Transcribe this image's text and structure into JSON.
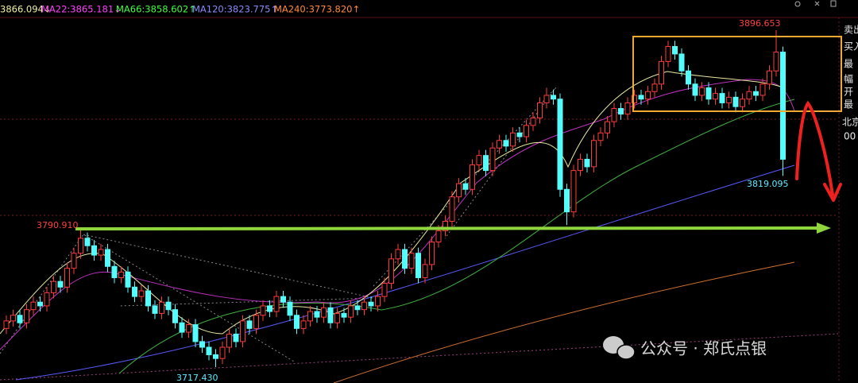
{
  "chart_data": {
    "type": "candlestick",
    "header": [
      "3866.094↓",
      "MA22:3865.181↓",
      "MA66:3858.602↑",
      "MA120:3823.775↑",
      "MA240:3773.820↑"
    ],
    "header_colors": [
      "#f0f0a0",
      "#ff40ff",
      "#40ff40",
      "#8a8aff",
      "#ff8a40"
    ],
    "annotations": [
      {
        "text": "3790.910",
        "color": "#ff4040"
      },
      {
        "text": "3896.653",
        "color": "#ff4040"
      },
      {
        "text": "3819.095",
        "color": "#60e8ff"
      },
      {
        "text": "3717.430",
        "color": "#60e8ff"
      }
    ],
    "side_panel": [
      "卖出",
      "买入",
      "最",
      "幅",
      "开",
      "最",
      "北京",
      "00"
    ],
    "watermark": "公众号 · 郑氏点银",
    "up_color": "#ff3a3a",
    "down_color": "#54fcfc",
    "open": [
      3738,
      3742,
      3745,
      3741,
      3748,
      3752,
      3750,
      3757,
      3763,
      3760,
      3770,
      3778,
      3786,
      3782,
      3777,
      3780,
      3771,
      3765,
      3768,
      3760,
      3755,
      3758,
      3750,
      3746,
      3752,
      3748,
      3741,
      3736,
      3740,
      3731,
      3728,
      3724,
      3722,
      3728,
      3735,
      3731,
      3742,
      3738,
      3745,
      3750,
      3747,
      3755,
      3752,
      3745,
      3738,
      3742,
      3747,
      3744,
      3749,
      3741,
      3746,
      3744,
      3750,
      3748,
      3752,
      3750,
      3755,
      3762,
      3775,
      3780,
      3770,
      3778,
      3765,
      3772,
      3784,
      3790,
      3795,
      3808,
      3815,
      3812,
      3825,
      3830,
      3822,
      3834,
      3838,
      3835,
      3842,
      3840,
      3846,
      3850,
      3858,
      3862,
      3860,
      3812,
      3800,
      3822,
      3828,
      3824,
      3838,
      3842,
      3848,
      3855,
      3852,
      3858,
      3862,
      3860,
      3864,
      3868,
      3880,
      3888,
      3884,
      3875,
      3868,
      3862,
      3866,
      3860,
      3863,
      3858,
      3861,
      3856,
      3860,
      3864,
      3862,
      3868,
      3875,
      3885
    ],
    "high": [
      3745,
      3748,
      3748,
      3751,
      3755,
      3755,
      3760,
      3766,
      3766,
      3773,
      3781,
      3790.91,
      3789,
      3785,
      3783,
      3783,
      3774,
      3771,
      3771,
      3763,
      3761,
      3761,
      3753,
      3755,
      3755,
      3751,
      3744,
      3743,
      3743,
      3734,
      3731,
      3727,
      3731,
      3738,
      3738,
      3745,
      3745,
      3748,
      3753,
      3753,
      3758,
      3758,
      3755,
      3748,
      3745,
      3750,
      3750,
      3752,
      3752,
      3749,
      3749,
      3753,
      3753,
      3755,
      3755,
      3758,
      3765,
      3778,
      3783,
      3783,
      3781,
      3781,
      3775,
      3787,
      3793,
      3798,
      3811,
      3818,
      3818,
      3828,
      3833,
      3833,
      3837,
      3841,
      3841,
      3845,
      3845,
      3849,
      3853,
      3861,
      3866,
      3865,
      3863,
      3815,
      3825,
      3831,
      3831,
      3841,
      3845,
      3851,
      3858,
      3858,
      3861,
      3865,
      3865,
      3867,
      3871,
      3883,
      3891,
      3891,
      3887,
      3878,
      3871,
      3869,
      3869,
      3866,
      3866,
      3864,
      3864,
      3863,
      3867,
      3867,
      3871,
      3878,
      3896.653,
      3888
    ],
    "low": [
      3735,
      3739,
      3738,
      3738,
      3745,
      3747,
      3747,
      3754,
      3757,
      3757,
      3767,
      3775,
      3779,
      3774,
      3774,
      3768,
      3762,
      3762,
      3757,
      3752,
      3752,
      3747,
      3743,
      3743,
      3745,
      3738,
      3733,
      3733,
      3728,
      3725,
      3721,
      3717.43,
      3719,
      3725,
      3728,
      3728,
      3735,
      3735,
      3742,
      3744,
      3744,
      3749,
      3742,
      3735,
      3735,
      3739,
      3741,
      3741,
      3738,
      3738,
      3741,
      3741,
      3745,
      3745,
      3747,
      3747,
      3752,
      3759,
      3772,
      3767,
      3767,
      3762,
      3762,
      3769,
      3781,
      3787,
      3792,
      3805,
      3809,
      3809,
      3822,
      3819,
      3819,
      3831,
      3832,
      3832,
      3837,
      3837,
      3843,
      3847,
      3855,
      3857,
      3808,
      3793,
      3797,
      3819,
      3821,
      3821,
      3835,
      3839,
      3845,
      3849,
      3849,
      3855,
      3857,
      3857,
      3861,
      3865,
      3877,
      3881,
      3872,
      3865,
      3859,
      3859,
      3857,
      3857,
      3855,
      3855,
      3853,
      3853,
      3857,
      3859,
      3859,
      3865,
      3872,
      3819.095
    ],
    "close": [
      3742,
      3745,
      3741,
      3748,
      3752,
      3750,
      3757,
      3763,
      3760,
      3770,
      3778,
      3786,
      3782,
      3777,
      3780,
      3771,
      3765,
      3768,
      3760,
      3755,
      3758,
      3750,
      3746,
      3752,
      3748,
      3741,
      3736,
      3740,
      3731,
      3728,
      3724,
      3722,
      3728,
      3735,
      3731,
      3742,
      3738,
      3745,
      3750,
      3747,
      3755,
      3752,
      3745,
      3738,
      3742,
      3747,
      3744,
      3749,
      3741,
      3746,
      3744,
      3750,
      3748,
      3752,
      3750,
      3755,
      3762,
      3775,
      3780,
      3770,
      3778,
      3765,
      3772,
      3784,
      3790,
      3795,
      3808,
      3815,
      3812,
      3825,
      3830,
      3822,
      3834,
      3838,
      3835,
      3842,
      3840,
      3846,
      3850,
      3858,
      3862,
      3860,
      3812,
      3800,
      3822,
      3828,
      3824,
      3838,
      3842,
      3848,
      3855,
      3852,
      3858,
      3862,
      3860,
      3864,
      3868,
      3880,
      3888,
      3884,
      3875,
      3868,
      3862,
      3866,
      3860,
      3863,
      3858,
      3861,
      3856,
      3860,
      3864,
      3862,
      3868,
      3875,
      3885,
      3828
    ]
  }
}
